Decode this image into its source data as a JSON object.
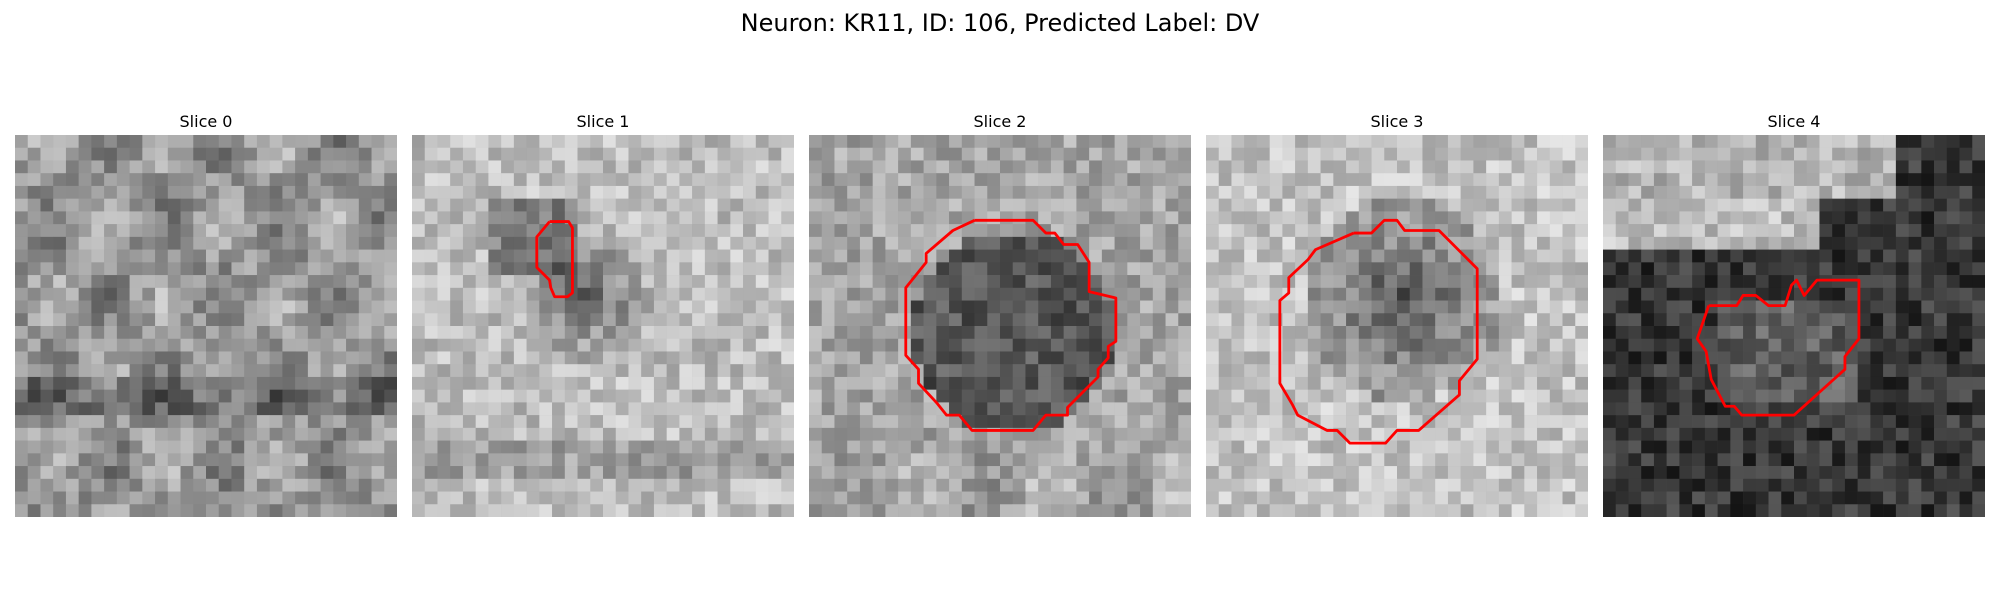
{
  "title": "Neuron: KR11, ID: 106, Predicted Label: DV",
  "neuron": "KR11",
  "id": 106,
  "predicted_label": "DV",
  "contour_color": "#ff0000",
  "image_type": "grayscale microscopy patches with red segmentation contour",
  "slices": [
    {
      "label": "Slice 0",
      "contour": false,
      "tone": "mixed"
    },
    {
      "label": "Slice 1",
      "contour": true,
      "tone": "light"
    },
    {
      "label": "Slice 2",
      "contour": true,
      "tone": "mixed"
    },
    {
      "label": "Slice 3",
      "contour": true,
      "tone": "light"
    },
    {
      "label": "Slice 4",
      "contour": true,
      "tone": "dark"
    }
  ]
}
